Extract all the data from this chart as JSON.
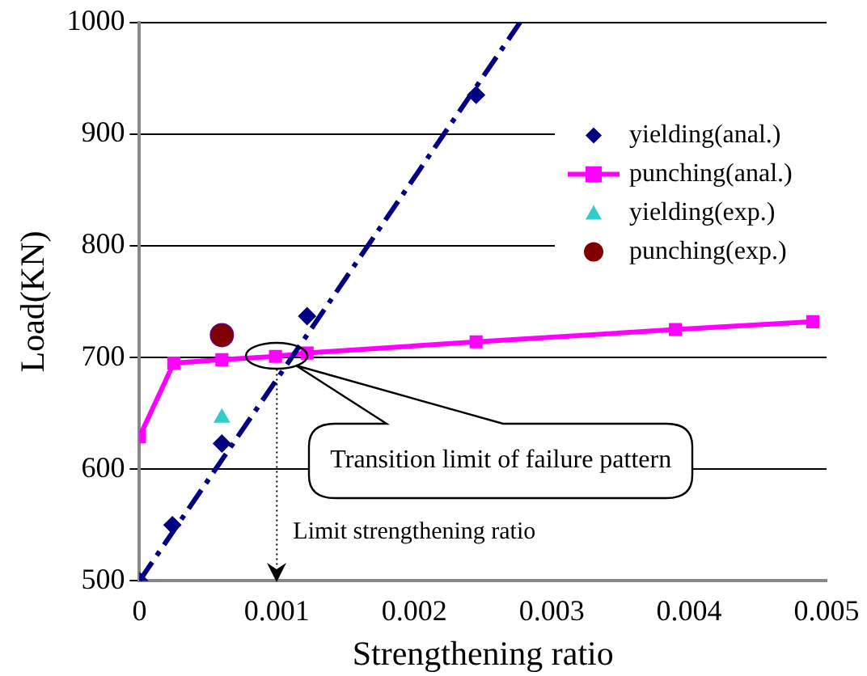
{
  "chart_data": {
    "type": "scatter",
    "xlabel": "Strengthening ratio",
    "ylabel": "Load(KN)",
    "xlim": [
      0,
      0.005
    ],
    "xticks": [
      0,
      0.001,
      0.002,
      0.003,
      0.004,
      0.005
    ],
    "ylim": [
      500,
      1000
    ],
    "yticks": [
      500,
      600,
      700,
      800,
      900,
      1000
    ],
    "grid": "y",
    "legend": "top right",
    "series": [
      {
        "name": "yielding(anal.)",
        "type": "scatter",
        "marker": "diamond",
        "color": "#000080",
        "x": [
          0,
          0.00024,
          0.0006,
          0.00122,
          0.00245
        ],
        "values": [
          500,
          550,
          623,
          737,
          935
        ]
      },
      {
        "type": "line",
        "marker": "none",
        "line_style": "dashed",
        "color": "#000080",
        "x": [
          0,
          0.00277
        ],
        "values": [
          500,
          1000
        ]
      },
      {
        "name": "punching(anal.)",
        "type": "line",
        "marker": "square",
        "color": "#ff00ff",
        "x": [
          0,
          0.00025,
          0.0006,
          0.00099,
          0.00122,
          0.00245,
          0.0039,
          0.0049
        ],
        "values": [
          629,
          695,
          698,
          701,
          704,
          714,
          725,
          732
        ]
      },
      {
        "name": "yielding(exp.)",
        "type": "scatter",
        "marker": "triangle",
        "color": "#33cccc",
        "x": [
          0.0006
        ],
        "values": [
          646
        ]
      },
      {
        "name": "punching(exp.)",
        "type": "scatter",
        "marker": "circle",
        "color": "#800000",
        "x": [
          0.0006
        ],
        "values": [
          720
        ]
      }
    ],
    "ref_lines": [
      {
        "axis": "x",
        "value": 0.001,
        "label": "Limit strengthening ratio",
        "line_style": "dotted"
      }
    ],
    "annotations": [
      "Transition limit of failure pattern"
    ]
  }
}
